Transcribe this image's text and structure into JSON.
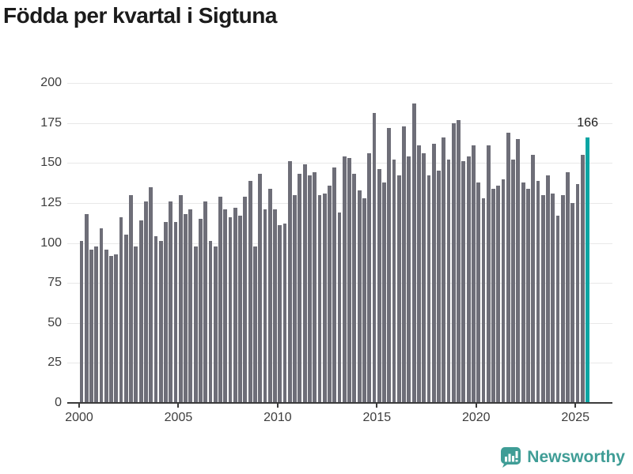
{
  "title": "Födda per kvartal i Sigtuna",
  "annotation": {
    "label": "166"
  },
  "branding": {
    "name": "Newsworthy",
    "icon": "newsworthy-bubble-chart-icon"
  },
  "colors": {
    "bar": "#6e6e78",
    "highlight": "#0aa5a3",
    "brand": "#3f9d96",
    "grid": "#e8e8e8",
    "axis": "#3b3b3b",
    "text": "#3d3d3d",
    "title": "#1b1b1b"
  },
  "chart_data": {
    "type": "bar",
    "title": "Födda per kvartal i Sigtuna",
    "unit": "births per quarter",
    "period_start": "2000-Q1",
    "period_end": "2025-Q3",
    "x_tick_labels": [
      "2000",
      "2005",
      "2010",
      "2015",
      "2020",
      "2025"
    ],
    "y_ticks": [
      0,
      25,
      50,
      75,
      100,
      125,
      150,
      175,
      200
    ],
    "ylim": [
      0,
      200
    ],
    "grid": "horizontal",
    "legend": "none",
    "highlight_last": true,
    "last_value_label": "166",
    "values": [
      101,
      118,
      96,
      98,
      109,
      96,
      92,
      93,
      116,
      105,
      130,
      98,
      114,
      126,
      135,
      104,
      101,
      113,
      126,
      113,
      130,
      118,
      121,
      98,
      115,
      126,
      101,
      98,
      129,
      121,
      116,
      122,
      117,
      129,
      139,
      98,
      143,
      121,
      134,
      121,
      111,
      112,
      151,
      130,
      143,
      149,
      142,
      144,
      130,
      131,
      136,
      147,
      119,
      154,
      153,
      143,
      133,
      128,
      156,
      181,
      146,
      138,
      172,
      152,
      142,
      173,
      154,
      187,
      161,
      156,
      142,
      162,
      145,
      166,
      152,
      175,
      177,
      151,
      154,
      161,
      138,
      128,
      161,
      134,
      136,
      140,
      169,
      152,
      165,
      138,
      134,
      155,
      139,
      130,
      142,
      131,
      117,
      130,
      144,
      125,
      137,
      155,
      166
    ]
  }
}
